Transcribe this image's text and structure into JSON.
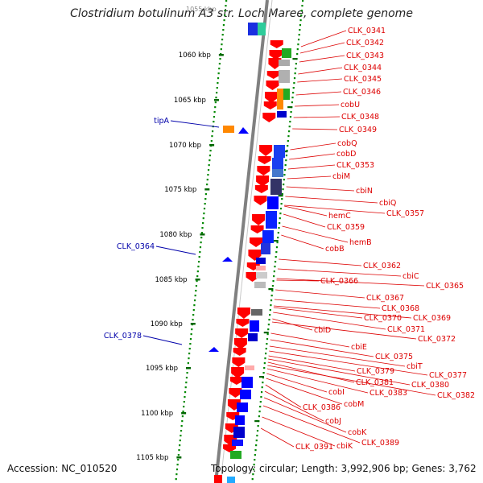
{
  "title": "Clostridium botulinum A3 str. Loch Maree, complete genome",
  "footer": {
    "accession": "Accession: NC_010520",
    "topology": "Topology: circular; Length: 3,992,906 bp; Genes: 3,762"
  },
  "ticks": [
    "1060 kbp",
    "1065 kbp",
    "1070 kbp",
    "1075 kbp",
    "1080 kbp",
    "1085 kbp",
    "1090 kbp",
    "1095 kbp",
    "1100 kbp",
    "1105 kbp"
  ],
  "partial_tick": "1055 kbp",
  "left_labels": [
    "tipA",
    "CLK_0364",
    "CLK_0378"
  ],
  "right_labels": [
    "CLK_0341",
    "CLK_0342",
    "CLK_0343",
    "CLK_0344",
    "CLK_0345",
    "CLK_0346",
    "cobU",
    "CLK_0348",
    "CLK_0349",
    "cobQ",
    "cobD",
    "CLK_0353",
    "cbiM",
    "cbiN",
    "cbiQ",
    "CLK_0357",
    "hemC",
    "CLK_0359",
    "hemB",
    "cobB",
    "CLK_0362",
    "cbiC",
    "CLK_0365",
    "CLK_0366",
    "CLK_0367",
    "CLK_0368",
    "CLK_0369",
    "CLK_0370",
    "CLK_0371",
    "cbiD",
    "CLK_0372",
    "cbiE",
    "CLK_0375",
    "cbiT",
    "CLK_0377",
    "CLK_0379",
    "CLK_0380",
    "CLK_0381",
    "CLK_0382",
    "CLK_0383",
    "cobI",
    "cobM",
    "CLK_0386",
    "cobJ",
    "cobK",
    "CLK_0389",
    "cbiK",
    "CLK_0391"
  ],
  "colors": {
    "backbone": "#808080",
    "gene_forward": "#ff0000",
    "gene_reverse": "#0000ff",
    "left_label": "#0000aa",
    "right_label": "#dd0000",
    "dots": "#008800"
  }
}
